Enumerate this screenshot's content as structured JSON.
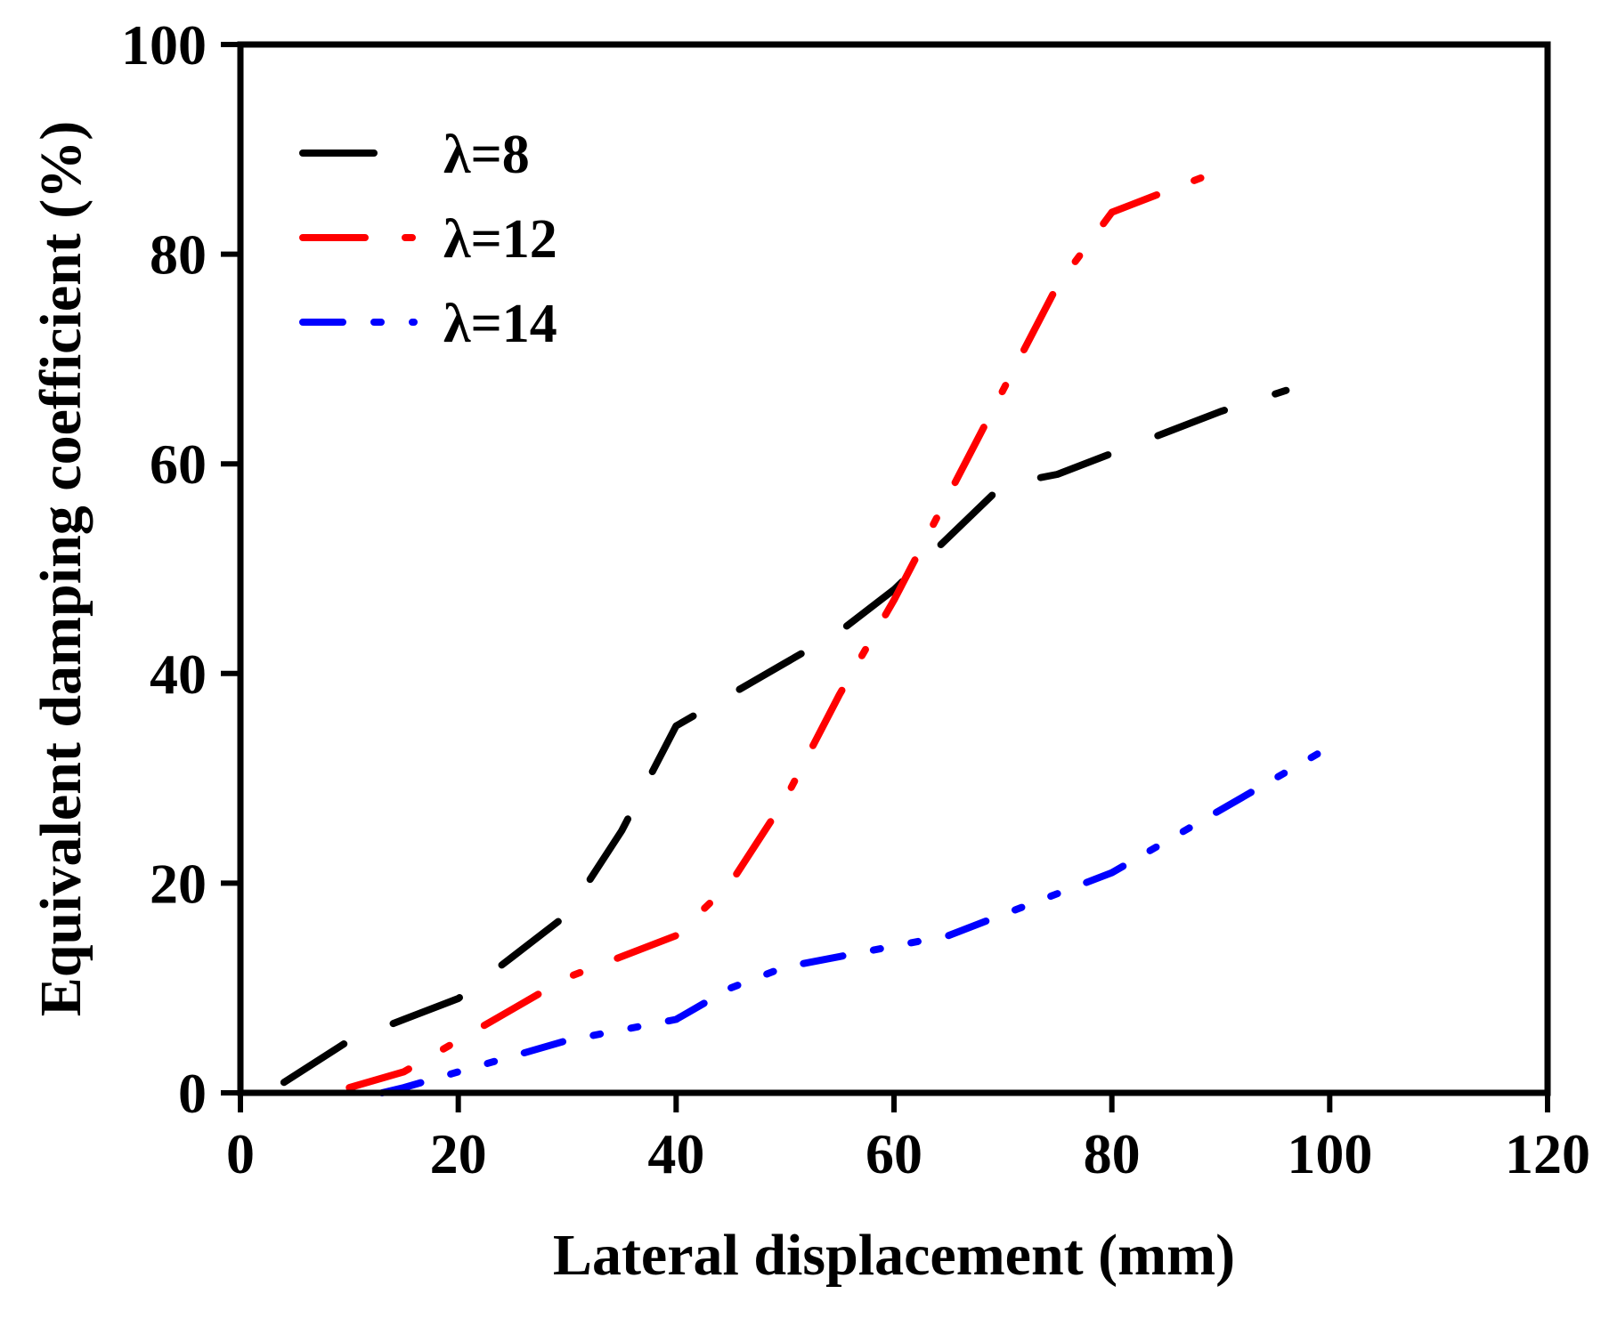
{
  "chart_data": {
    "type": "line",
    "title": "",
    "xlabel": "Lateral displacement (mm)",
    "ylabel": "Equivalent damping coefficient (%)",
    "xlim": [
      0,
      120
    ],
    "ylim": [
      0,
      100
    ],
    "xticks": [
      0,
      20,
      40,
      60,
      80,
      100,
      120
    ],
    "yticks": [
      0,
      20,
      40,
      60,
      80,
      100
    ],
    "grid": false,
    "legend_position": "top-left",
    "series": [
      {
        "name": "λ=8",
        "color": "#000000",
        "dash": "long-dash",
        "x": [
          4,
          10,
          15,
          20,
          25,
          30,
          35,
          40,
          45,
          50,
          55,
          60,
          65,
          70,
          75,
          80,
          85,
          90,
          96
        ],
        "y": [
          1,
          5,
          7,
          9,
          13,
          17,
          25,
          35,
          38,
          41,
          44,
          48,
          53,
          58,
          59,
          61,
          63,
          65,
          67
        ]
      },
      {
        "name": "λ=12",
        "color": "#ff0000",
        "dash": "dash-dot",
        "x": [
          10,
          15,
          20,
          25,
          30,
          35,
          40,
          45,
          50,
          55,
          60,
          65,
          70,
          75,
          80,
          85,
          90
        ],
        "y": [
          0.5,
          2,
          5,
          8,
          11,
          13,
          15,
          20,
          28,
          38,
          47,
          57,
          67,
          77,
          84,
          86,
          88
        ]
      },
      {
        "name": "λ=14",
        "color": "#0000ff",
        "dash": "dash-dot-dot",
        "x": [
          13,
          15,
          20,
          25,
          30,
          35,
          40,
          45,
          50,
          55,
          60,
          65,
          70,
          75,
          80,
          85,
          90,
          95,
          100
        ],
        "y": [
          0,
          0.5,
          2,
          3.5,
          5,
          6,
          7,
          10,
          12,
          13,
          14,
          15,
          17,
          19,
          21,
          24,
          27,
          30,
          33
        ]
      }
    ]
  }
}
